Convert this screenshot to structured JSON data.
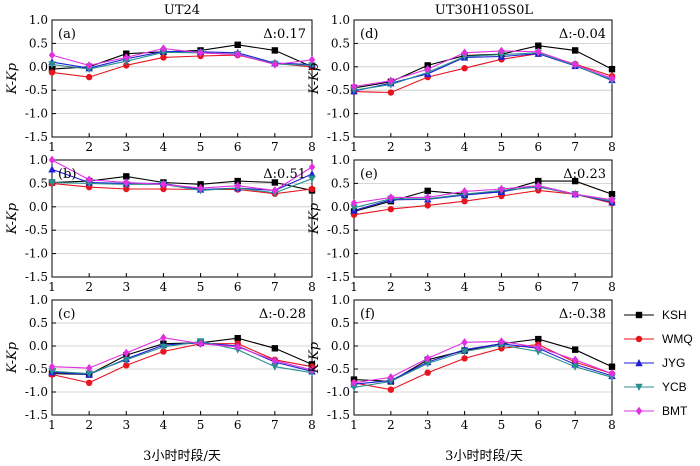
{
  "chart_data": {
    "type": "line",
    "column_titles": [
      "UT24",
      "UT30H105S0L"
    ],
    "xlabel": "3小时时段/天",
    "ylabel": "K-Kp",
    "x": [
      1,
      2,
      3,
      4,
      5,
      6,
      7,
      8
    ],
    "ylim": [
      -1.5,
      1.0
    ],
    "yticks": [
      "1.0",
      "0.5",
      "0.0",
      "-0.5",
      "-1.0",
      "-1.5"
    ],
    "xticks": [
      "1",
      "2",
      "3",
      "4",
      "5",
      "6",
      "7",
      "8"
    ],
    "series_styles": [
      {
        "name": "KSH",
        "color": "#000000",
        "marker": "square"
      },
      {
        "name": "WMQ",
        "color": "#e8141e",
        "marker": "circle"
      },
      {
        "name": "JYG",
        "color": "#1f1fd6",
        "marker": "triangle-up"
      },
      {
        "name": "YCB",
        "color": "#2a8f8f",
        "marker": "triangle-down"
      },
      {
        "name": "BMT",
        "color": "#e030e0",
        "marker": "diamond"
      }
    ],
    "panels": [
      {
        "label": "(a)",
        "delta": "Δ:0.17",
        "series": [
          {
            "name": "KSH",
            "values": [
              -0.05,
              0.0,
              0.28,
              0.32,
              0.35,
              0.47,
              0.35,
              0.0
            ]
          },
          {
            "name": "WMQ",
            "values": [
              -0.12,
              -0.22,
              0.03,
              0.2,
              0.23,
              0.25,
              0.07,
              0.0
            ]
          },
          {
            "name": "JYG",
            "values": [
              0.1,
              -0.03,
              0.17,
              0.33,
              0.32,
              0.3,
              0.08,
              0.05
            ]
          },
          {
            "name": "YCB",
            "values": [
              0.05,
              -0.05,
              0.12,
              0.31,
              0.3,
              0.27,
              0.06,
              0.03
            ]
          },
          {
            "name": "BMT",
            "values": [
              0.25,
              0.03,
              0.2,
              0.39,
              0.3,
              0.26,
              0.05,
              0.15
            ]
          }
        ]
      },
      {
        "label": "(b)",
        "delta": "Δ:0.51",
        "series": [
          {
            "name": "KSH",
            "values": [
              0.52,
              0.55,
              0.65,
              0.52,
              0.48,
              0.55,
              0.52,
              0.35
            ]
          },
          {
            "name": "WMQ",
            "values": [
              0.5,
              0.42,
              0.38,
              0.38,
              0.37,
              0.37,
              0.28,
              0.38
            ]
          },
          {
            "name": "JYG",
            "values": [
              0.8,
              0.52,
              0.5,
              0.5,
              0.37,
              0.4,
              0.35,
              0.7
            ]
          },
          {
            "name": "YCB",
            "values": [
              0.52,
              0.5,
              0.48,
              0.48,
              0.35,
              0.4,
              0.3,
              0.6
            ]
          },
          {
            "name": "BMT",
            "values": [
              1.0,
              0.58,
              0.52,
              0.48,
              0.4,
              0.45,
              0.35,
              0.85
            ]
          }
        ]
      },
      {
        "label": "(c)",
        "delta": "Δ:-0.28",
        "series": [
          {
            "name": "KSH",
            "values": [
              -0.6,
              -0.62,
              -0.2,
              0.05,
              0.07,
              0.17,
              -0.05,
              -0.4
            ]
          },
          {
            "name": "WMQ",
            "values": [
              -0.62,
              -0.8,
              -0.42,
              -0.12,
              0.05,
              0.05,
              -0.3,
              -0.45
            ]
          },
          {
            "name": "JYG",
            "values": [
              -0.57,
              -0.62,
              -0.28,
              0.02,
              0.07,
              0.0,
              -0.35,
              -0.55
            ]
          },
          {
            "name": "YCB",
            "values": [
              -0.55,
              -0.6,
              -0.3,
              -0.02,
              0.1,
              -0.08,
              -0.45,
              -0.58
            ]
          },
          {
            "name": "BMT",
            "values": [
              -0.45,
              -0.48,
              -0.15,
              0.18,
              0.05,
              -0.02,
              -0.32,
              -0.52
            ]
          }
        ]
      },
      {
        "label": "(d)",
        "delta": "Δ:-0.04",
        "series": [
          {
            "name": "KSH",
            "values": [
              -0.45,
              -0.32,
              0.03,
              0.24,
              0.27,
              0.45,
              0.35,
              -0.05
            ]
          },
          {
            "name": "WMQ",
            "values": [
              -0.53,
              -0.55,
              -0.22,
              -0.03,
              0.16,
              0.28,
              0.06,
              -0.2
            ]
          },
          {
            "name": "JYG",
            "values": [
              -0.52,
              -0.35,
              -0.15,
              0.2,
              0.22,
              0.28,
              0.02,
              -0.28
            ]
          },
          {
            "name": "YCB",
            "values": [
              -0.5,
              -0.38,
              -0.12,
              0.22,
              0.26,
              0.3,
              0.03,
              -0.3
            ]
          },
          {
            "name": "BMT",
            "values": [
              -0.42,
              -0.3,
              -0.05,
              0.3,
              0.34,
              0.32,
              0.05,
              -0.25
            ]
          }
        ]
      },
      {
        "label": "(e)",
        "delta": "Δ:0.23",
        "series": [
          {
            "name": "KSH",
            "values": [
              -0.1,
              0.12,
              0.34,
              0.27,
              0.32,
              0.55,
              0.55,
              0.27
            ]
          },
          {
            "name": "WMQ",
            "values": [
              -0.17,
              -0.05,
              0.03,
              0.12,
              0.23,
              0.35,
              0.27,
              0.08
            ]
          },
          {
            "name": "JYG",
            "values": [
              -0.08,
              0.15,
              0.16,
              0.25,
              0.32,
              0.45,
              0.27,
              0.1
            ]
          },
          {
            "name": "YCB",
            "values": [
              -0.02,
              0.17,
              0.17,
              0.27,
              0.35,
              0.42,
              0.27,
              0.12
            ]
          },
          {
            "name": "BMT",
            "values": [
              0.08,
              0.2,
              0.2,
              0.33,
              0.38,
              0.45,
              0.27,
              0.15
            ]
          }
        ]
      },
      {
        "label": "(f)",
        "delta": "Δ:-0.38",
        "series": [
          {
            "name": "KSH",
            "values": [
              -0.73,
              -0.77,
              -0.3,
              -0.1,
              0.05,
              0.15,
              -0.08,
              -0.45
            ]
          },
          {
            "name": "WMQ",
            "values": [
              -0.8,
              -0.95,
              -0.58,
              -0.27,
              -0.05,
              0.03,
              -0.35,
              -0.6
            ]
          },
          {
            "name": "JYG",
            "values": [
              -0.83,
              -0.75,
              -0.35,
              -0.08,
              0.05,
              -0.05,
              -0.4,
              -0.65
            ]
          },
          {
            "name": "YCB",
            "values": [
              -0.9,
              -0.77,
              -0.38,
              -0.12,
              0.02,
              -0.12,
              -0.45,
              -0.68
            ]
          },
          {
            "name": "BMT",
            "values": [
              -0.8,
              -0.68,
              -0.27,
              0.08,
              0.1,
              -0.03,
              -0.3,
              -0.6
            ]
          }
        ]
      }
    ],
    "legend": {
      "position": "right",
      "entries": [
        "KSH",
        "WMQ",
        "JYG",
        "YCB",
        "BMT"
      ]
    }
  }
}
